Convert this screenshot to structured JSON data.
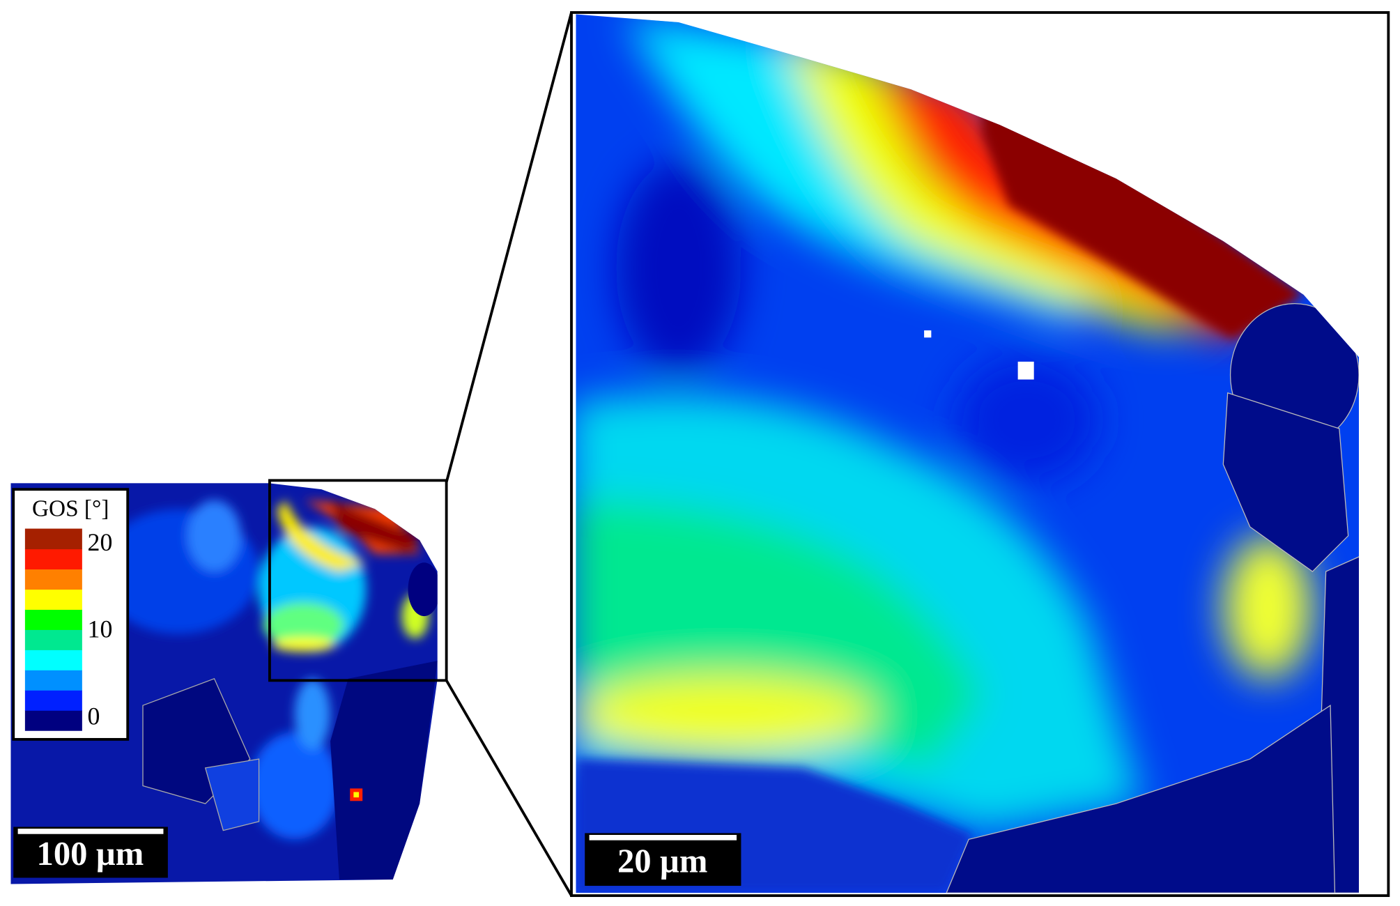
{
  "legend": {
    "title": "GOS [°]",
    "ticks": [
      0,
      10,
      20
    ],
    "colors": [
      "#000080",
      "#0020ff",
      "#0090ff",
      "#00ffff",
      "#00e890",
      "#00ff00",
      "#ffff00",
      "#ff8000",
      "#ff1a00",
      "#a52000"
    ]
  },
  "overview_scale_bar": "100 µm",
  "detail_scale_bar": "20 µm"
}
